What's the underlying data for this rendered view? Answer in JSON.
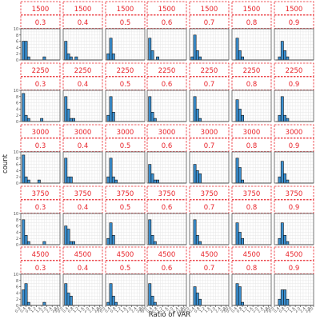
{
  "chart_data": {
    "type": "bar",
    "subtype": "faceted histogram",
    "xlabel": "Ratio of VAR",
    "ylabel": "count",
    "xlim": [
      0.0,
      3.0
    ],
    "ylim": [
      0,
      10
    ],
    "x_ticks": [
      "0.0",
      "0.4",
      "0.8",
      "1.2",
      "1.6",
      "2.0",
      "2.4",
      "2.8",
      "3.0"
    ],
    "y_ticks": [
      "0",
      "2",
      "4",
      "6",
      "8",
      "10"
    ],
    "bin_width": 0.2,
    "bin_starts": [
      0.1,
      0.3,
      0.5,
      0.7,
      0.9,
      1.1,
      1.3,
      1.5,
      1.7,
      1.9
    ],
    "row_facets": [
      "1500",
      "2250",
      "3000",
      "3750",
      "4500"
    ],
    "col_facets": [
      "0.3",
      "0.4",
      "0.5",
      "0.6",
      "0.7",
      "0.8",
      "0.9"
    ],
    "grid": true,
    "colors": {
      "bar_fill": "#3a8fd0",
      "bar_edge": "#111111",
      "strip_text": "#e8232a",
      "strip_border": "#e8232a",
      "panel_border": "#555555",
      "grid": "#e6e6e6"
    },
    "panels": [
      [
        {
          "row": "1500",
          "col": "0.3",
          "counts": [
            6,
            6,
            1,
            0,
            0,
            0,
            0,
            0,
            1,
            0
          ]
        },
        {
          "row": "1500",
          "col": "0.4",
          "counts": [
            6,
            2,
            1,
            0,
            1,
            0,
            0,
            0,
            0,
            0
          ]
        },
        {
          "row": "1500",
          "col": "0.5",
          "counts": [
            2,
            7,
            2,
            0,
            0,
            0,
            0,
            0,
            0,
            0
          ]
        },
        {
          "row": "1500",
          "col": "0.6",
          "counts": [
            7,
            3,
            0,
            1,
            0,
            0,
            0,
            0,
            0,
            0
          ]
        },
        {
          "row": "1500",
          "col": "0.7",
          "counts": [
            1,
            8,
            3,
            1,
            0,
            0,
            0,
            0,
            0,
            0
          ]
        },
        {
          "row": "1500",
          "col": "0.8",
          "counts": [
            0,
            7,
            3,
            1,
            0,
            0,
            0,
            0,
            0,
            0
          ]
        },
        {
          "row": "1500",
          "col": "0.9",
          "counts": [
            0,
            1,
            6,
            3,
            1,
            0,
            0,
            0,
            0,
            0
          ]
        }
      ],
      [
        {
          "row": "2250",
          "col": "0.3",
          "counts": [
            9,
            2,
            1,
            0,
            0,
            0,
            0,
            1,
            0,
            0
          ]
        },
        {
          "row": "2250",
          "col": "0.4",
          "counts": [
            8,
            4,
            1,
            1,
            0,
            0,
            0,
            0,
            0,
            0
          ]
        },
        {
          "row": "2250",
          "col": "0.5",
          "counts": [
            2,
            8,
            3,
            0,
            0,
            0,
            0,
            0,
            0,
            0
          ]
        },
        {
          "row": "2250",
          "col": "0.6",
          "counts": [
            8,
            3,
            1,
            0,
            0,
            0,
            0,
            0,
            0,
            0
          ]
        },
        {
          "row": "2250",
          "col": "0.7",
          "counts": [
            0,
            8,
            4,
            1,
            0,
            0,
            0,
            0,
            0,
            0
          ]
        },
        {
          "row": "2250",
          "col": "0.8",
          "counts": [
            0,
            7,
            4,
            2,
            0,
            0,
            0,
            0,
            0,
            0
          ]
        },
        {
          "row": "2250",
          "col": "0.9",
          "counts": [
            0,
            2,
            8,
            2,
            1,
            0,
            0,
            0,
            0,
            0
          ]
        }
      ],
      [
        {
          "row": "3000",
          "col": "0.3",
          "counts": [
            9,
            2,
            1,
            0,
            0,
            0,
            1,
            0,
            0,
            0
          ]
        },
        {
          "row": "3000",
          "col": "0.4",
          "counts": [
            8,
            2,
            2,
            0,
            0,
            0,
            0,
            0,
            0,
            0
          ]
        },
        {
          "row": "3000",
          "col": "0.5",
          "counts": [
            2,
            8,
            2,
            1,
            0,
            0,
            0,
            0,
            0,
            0
          ]
        },
        {
          "row": "3000",
          "col": "0.6",
          "counts": [
            6,
            3,
            1,
            1,
            0,
            0,
            0,
            0,
            0,
            0
          ]
        },
        {
          "row": "3000",
          "col": "0.7",
          "counts": [
            0,
            6,
            4,
            3,
            0,
            0,
            0,
            0,
            0,
            0
          ]
        },
        {
          "row": "3000",
          "col": "0.8",
          "counts": [
            0,
            8,
            5,
            1,
            0,
            0,
            0,
            0,
            0,
            0
          ]
        },
        {
          "row": "3000",
          "col": "0.9",
          "counts": [
            0,
            2,
            7,
            3,
            1,
            0,
            0,
            0,
            0,
            0
          ]
        }
      ],
      [
        {
          "row": "3750",
          "col": "0.3",
          "counts": [
            8,
            3,
            1,
            0,
            0,
            0,
            0,
            0,
            1,
            0
          ]
        },
        {
          "row": "3750",
          "col": "0.4",
          "counts": [
            6,
            5,
            1,
            1,
            0,
            0,
            0,
            0,
            0,
            0
          ]
        },
        {
          "row": "3750",
          "col": "0.5",
          "counts": [
            2,
            7,
            3,
            0,
            0,
            0,
            0,
            0,
            0,
            0
          ]
        },
        {
          "row": "3750",
          "col": "0.6",
          "counts": [
            8,
            3,
            1,
            0,
            0,
            0,
            0,
            0,
            0,
            0
          ]
        },
        {
          "row": "3750",
          "col": "0.7",
          "counts": [
            0,
            8,
            3,
            1,
            0,
            0,
            0,
            0,
            0,
            0
          ]
        },
        {
          "row": "3750",
          "col": "0.8",
          "counts": [
            0,
            7,
            4,
            2,
            0,
            0,
            0,
            0,
            0,
            0
          ]
        },
        {
          "row": "3750",
          "col": "0.9",
          "counts": [
            0,
            2,
            7,
            3,
            1,
            0,
            0,
            0,
            0,
            0
          ]
        }
      ],
      [
        {
          "row": "4500",
          "col": "0.3",
          "counts": [
            5,
            7,
            1,
            0,
            0,
            0,
            0,
            0,
            1,
            0
          ]
        },
        {
          "row": "4500",
          "col": "0.4",
          "counts": [
            7,
            4,
            3,
            0,
            0,
            0,
            0,
            0,
            0,
            0
          ]
        },
        {
          "row": "4500",
          "col": "0.5",
          "counts": [
            1,
            7,
            3,
            1,
            0,
            0,
            0,
            0,
            0,
            0
          ]
        },
        {
          "row": "4500",
          "col": "0.6",
          "counts": [
            7,
            3,
            1,
            0,
            0,
            0,
            0,
            0,
            0,
            0
          ]
        },
        {
          "row": "4500",
          "col": "0.7",
          "counts": [
            0,
            6,
            4,
            2,
            0,
            0,
            0,
            0,
            0,
            0
          ]
        },
        {
          "row": "4500",
          "col": "0.8",
          "counts": [
            0,
            7,
            6,
            1,
            0,
            0,
            0,
            0,
            0,
            0
          ]
        },
        {
          "row": "4500",
          "col": "0.9",
          "counts": [
            0,
            2,
            5,
            5,
            2,
            0,
            0,
            0,
            0,
            0
          ]
        }
      ]
    ]
  }
}
